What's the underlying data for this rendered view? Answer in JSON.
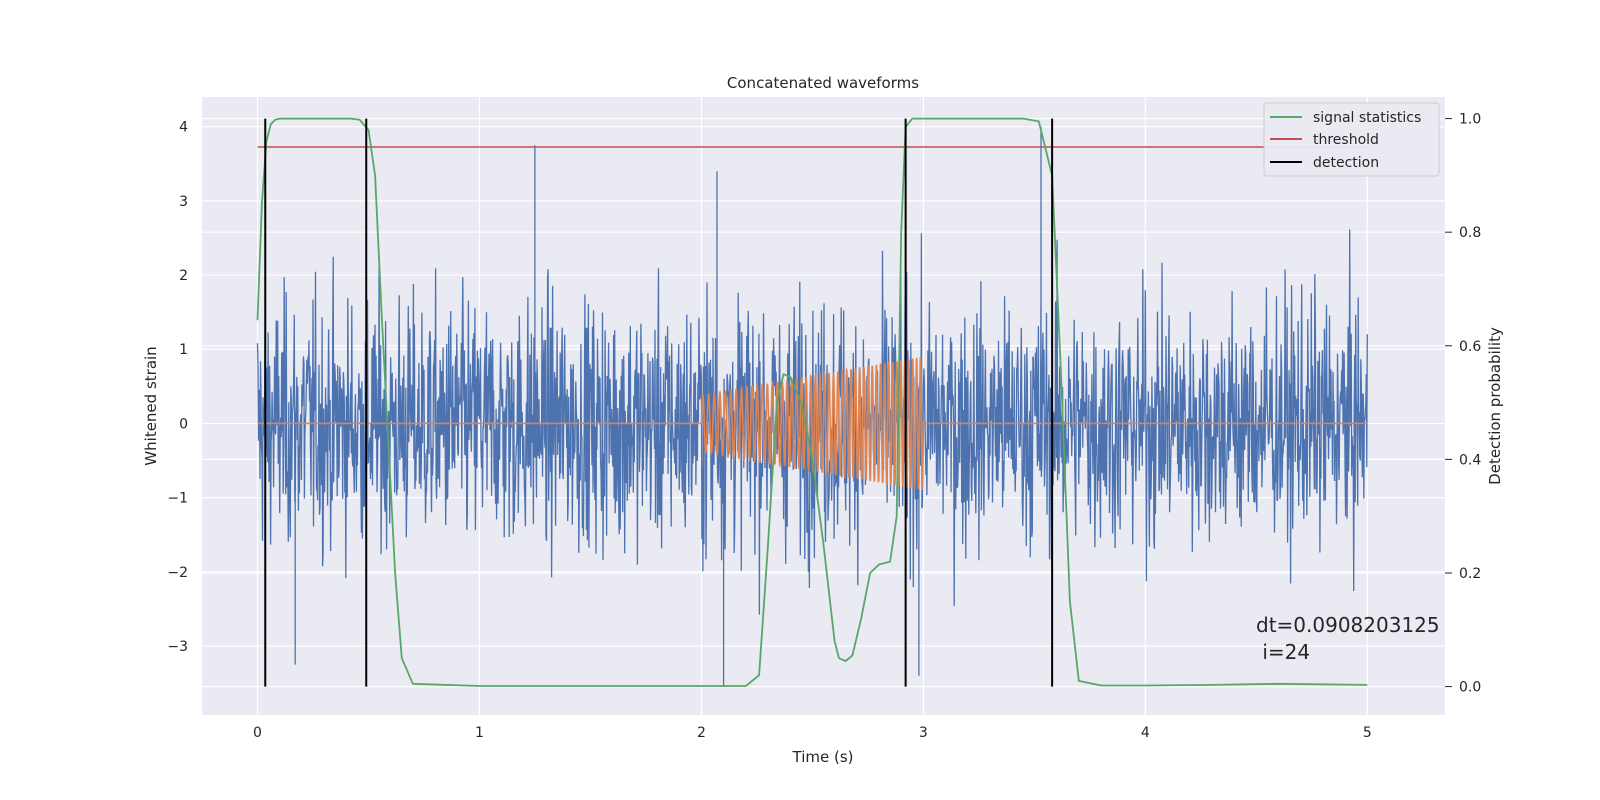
{
  "chart_data": {
    "type": "line",
    "title": "Concatenated waveforms",
    "xlabel": "Time (s)",
    "ylabel": "Whitened strain",
    "ylabel_right": "Detection probability",
    "xlim": [
      -0.25,
      5.35
    ],
    "ylim": [
      -3.93,
      4.4
    ],
    "ylim_right": [
      -0.05,
      1.038
    ],
    "xticks": [
      0,
      1,
      2,
      3,
      4,
      5
    ],
    "xtick_labels": [
      "0",
      "1",
      "2",
      "3",
      "4",
      "5"
    ],
    "yticks": [
      4,
      3,
      2,
      1,
      0,
      -1,
      -2,
      -3
    ],
    "ytick_labels": [
      "4",
      "3",
      "2",
      "1",
      "0",
      "−1",
      "−2",
      "−3"
    ],
    "yticks_right": [
      1.0,
      0.8,
      0.6,
      0.4,
      0.2,
      0.0
    ],
    "ytick_labels_right": [
      "1.0",
      "0.8",
      "0.6",
      "0.4",
      "0.2",
      "0.0"
    ],
    "grid": true,
    "legend_position": "top-right",
    "legend": [
      {
        "label": "signal statistics",
        "color": "#55a868"
      },
      {
        "label": "threshold",
        "color": "#c44e52"
      },
      {
        "label": "detection",
        "color": "#000000"
      }
    ],
    "annotation": {
      "line1": "dt=0.0908203125",
      "line2": " i=24"
    },
    "series": [
      {
        "role": "strain noise",
        "color": "#4c72b0",
        "x_range": [
          0,
          5
        ],
        "amplitude_envelope": 2.2,
        "notable_peaks": [
          {
            "x": 1.25,
            "y": 3.75
          },
          {
            "x": 2.07,
            "y": 3.4
          },
          {
            "x": 3.53,
            "y": 4.0
          },
          {
            "x": 0.17,
            "y": -3.25
          },
          {
            "x": 2.1,
            "y": -3.55
          },
          {
            "x": 2.98,
            "y": -3.4
          }
        ]
      },
      {
        "role": "injected waveform",
        "color": "#dd8452",
        "x_range": [
          0,
          5
        ],
        "chirp_start": 2.0,
        "chirp_end": 3.0,
        "amplitude_start": 0.38,
        "amplitude_end": 0.9,
        "cycles": 48
      },
      {
        "name": "signal statistics",
        "axis": "right",
        "color": "#55a868",
        "x": [
          0,
          0.02,
          0.04,
          0.06,
          0.08,
          0.1,
          0.15,
          0.3,
          0.42,
          0.46,
          0.5,
          0.53,
          0.56,
          0.6,
          0.62,
          0.65,
          0.7,
          1.0,
          2.0,
          2.2,
          2.26,
          2.3,
          2.34,
          2.37,
          2.4,
          2.45,
          2.5,
          2.55,
          2.6,
          2.62,
          2.65,
          2.68,
          2.72,
          2.76,
          2.8,
          2.85,
          2.88,
          2.9,
          2.92,
          2.95,
          3.0,
          3.2,
          3.45,
          3.52,
          3.58,
          3.62,
          3.66,
          3.7,
          3.8,
          4.0,
          4.3,
          4.6,
          5.0
        ],
        "y": [
          0.645,
          0.85,
          0.96,
          0.99,
          0.998,
          1.0,
          1.0,
          1.0,
          1.0,
          0.998,
          0.98,
          0.9,
          0.65,
          0.35,
          0.2,
          0.05,
          0.005,
          0.001,
          0.001,
          0.001,
          0.02,
          0.25,
          0.5,
          0.55,
          0.545,
          0.5,
          0.4,
          0.25,
          0.08,
          0.05,
          0.045,
          0.055,
          0.12,
          0.2,
          0.215,
          0.22,
          0.3,
          0.8,
          0.985,
          1.0,
          1.0,
          1.0,
          1.0,
          0.995,
          0.9,
          0.55,
          0.15,
          0.01,
          0.002,
          0.002,
          0.003,
          0.005,
          0.003
        ]
      },
      {
        "name": "threshold",
        "axis": "right",
        "color": "#c44e52",
        "x": [
          0,
          5
        ],
        "y": [
          0.95,
          0.95
        ]
      }
    ],
    "detections": [
      0.035,
      0.49,
      2.92,
      3.58
    ]
  }
}
